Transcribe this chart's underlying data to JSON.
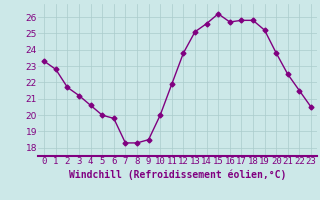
{
  "hours": [
    0,
    1,
    2,
    3,
    4,
    5,
    6,
    7,
    8,
    9,
    10,
    11,
    12,
    13,
    14,
    15,
    16,
    17,
    18,
    19,
    20,
    21,
    22,
    23
  ],
  "values": [
    23.3,
    22.8,
    21.7,
    21.2,
    20.6,
    20.0,
    19.8,
    18.3,
    18.3,
    18.5,
    20.0,
    21.9,
    23.8,
    25.1,
    25.6,
    26.2,
    25.7,
    25.8,
    25.8,
    25.2,
    23.8,
    22.5,
    21.5,
    20.5
  ],
  "line_color": "#800080",
  "marker": "D",
  "marker_size": 2.5,
  "bg_color": "#cce8e8",
  "grid_color": "#aacccc",
  "ylabel_ticks": [
    18,
    19,
    20,
    21,
    22,
    23,
    24,
    25,
    26
  ],
  "xlabel": "Windchill (Refroidissement éolien,°C)",
  "xlabel_fontsize": 7,
  "tick_fontsize": 6.5,
  "ylim": [
    17.5,
    26.8
  ],
  "xlim": [
    -0.5,
    23.5
  ],
  "border_color": "#800080"
}
